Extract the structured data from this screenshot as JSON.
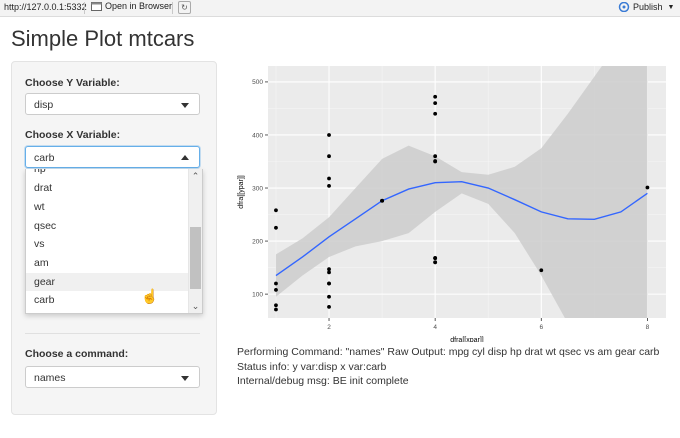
{
  "browser": {
    "url": "http://127.0.0.1:5332",
    "open_in_browser": "Open in Browser",
    "publish": "Publish"
  },
  "page": {
    "title": "Simple Plot mtcars"
  },
  "sidebar": {
    "y_label": "Choose Y Variable:",
    "y_value": "disp",
    "x_label": "Choose X Variable:",
    "x_value": "carb",
    "x_options_visible": [
      "hp",
      "drat",
      "wt",
      "qsec",
      "vs",
      "am",
      "gear",
      "carb"
    ],
    "x_highlighted": "gear",
    "cmd_label": "Choose a command:",
    "cmd_value": "names"
  },
  "output": {
    "line1": "Performing Command: \"names\" Raw Output: mpg cyl disp hp drat wt qsec vs am gear carb",
    "line2": "Status info: y var:disp x var:carb",
    "line3": "Internal/debug msg: BE init complete"
  },
  "chart_data": {
    "type": "scatter",
    "xlabel": "dfra[[xpar]]",
    "ylabel": "dfra[[ypar]]",
    "xlim": [
      0.85,
      8.35
    ],
    "ylim": [
      55,
      530
    ],
    "x_ticks": [
      2,
      4,
      6,
      8
    ],
    "y_ticks": [
      100,
      200,
      300,
      400,
      500
    ],
    "points": [
      [
        1,
        258
      ],
      [
        1,
        225
      ],
      [
        1,
        120
      ],
      [
        1,
        108
      ],
      [
        1,
        79
      ],
      [
        1,
        71
      ],
      [
        2,
        400
      ],
      [
        2,
        360
      ],
      [
        2,
        318
      ],
      [
        2,
        304
      ],
      [
        2,
        147
      ],
      [
        2,
        141
      ],
      [
        2,
        120
      ],
      [
        2,
        120
      ],
      [
        2,
        95
      ],
      [
        2,
        76
      ],
      [
        3,
        276
      ],
      [
        3,
        276
      ],
      [
        3,
        276
      ],
      [
        4,
        472
      ],
      [
        4,
        460
      ],
      [
        4,
        440
      ],
      [
        4,
        360
      ],
      [
        4,
        351
      ],
      [
        4,
        168
      ],
      [
        4,
        168
      ],
      [
        4,
        160
      ],
      [
        4,
        160
      ],
      [
        4,
        350
      ],
      [
        4,
        167.6
      ],
      [
        6,
        145
      ],
      [
        8,
        301
      ]
    ],
    "smooth": {
      "color": "#3366ff",
      "x": [
        1,
        1.5,
        2,
        2.5,
        3,
        3.5,
        4,
        4.5,
        5,
        5.5,
        6,
        6.5,
        7,
        7.5,
        8
      ],
      "y": [
        135,
        170,
        208,
        242,
        276,
        298,
        310,
        312,
        300,
        278,
        255,
        242,
        241,
        255,
        290
      ],
      "upper": [
        175,
        205,
        245,
        300,
        355,
        380,
        360,
        330,
        325,
        340,
        375,
        440,
        510,
        580,
        640
      ],
      "lower": [
        95,
        135,
        170,
        190,
        200,
        215,
        255,
        290,
        270,
        215,
        135,
        45,
        -25,
        -70,
        -60
      ]
    },
    "band_color": "#cccccc",
    "panel_bg": "#ebebeb"
  }
}
